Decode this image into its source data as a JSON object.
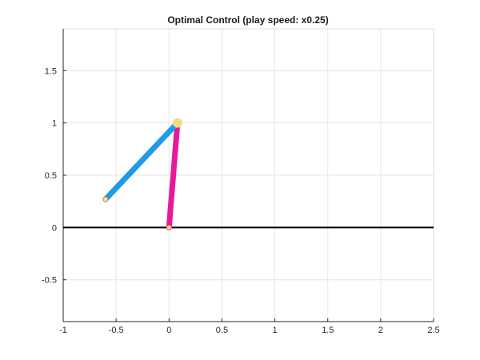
{
  "window": {
    "title": "Optimal Control (play speed: x0.25)"
  },
  "axes": {
    "xlim": [
      -1,
      2.5
    ],
    "ylim": [
      -0.9,
      1.9
    ],
    "xticks": [
      -1,
      -0.5,
      0,
      0.5,
      1,
      1.5,
      2,
      2.5
    ],
    "yticks": [
      -0.5,
      0,
      0.5,
      1,
      1.5
    ],
    "xtick_labels": [
      "-1",
      "-0.5",
      "0",
      "0.5",
      "1",
      "1.5",
      "2",
      "2.5"
    ],
    "ytick_labels": [
      "-0.5",
      "0",
      "0.5",
      "1",
      "1.5"
    ],
    "grid": true,
    "grid_color": "#e6e6e6",
    "axis_color": "#262626"
  },
  "scene": {
    "ground": {
      "x": [
        -1,
        2.5
      ],
      "y": 0,
      "color": "#000000"
    },
    "links": [
      {
        "name": "stance-leg",
        "from": [
          0.0,
          0.0
        ],
        "to": [
          0.08,
          1.0
        ],
        "color": "#e6199b"
      },
      {
        "name": "swing-leg",
        "from": [
          0.08,
          1.0
        ],
        "to": [
          -0.6,
          0.27
        ],
        "color": "#1f9ae8"
      }
    ],
    "hip": {
      "x": 0.08,
      "y": 1.0,
      "color": "#f5dc82"
    },
    "stance_foot": {
      "x": 0.0,
      "y": 0.0,
      "color": "#fbe29a",
      "edge": "#e05a4a"
    },
    "swing_foot": {
      "x": -0.6,
      "y": 0.27,
      "color": "#fbe29a",
      "edge": "#c98a2a"
    }
  }
}
